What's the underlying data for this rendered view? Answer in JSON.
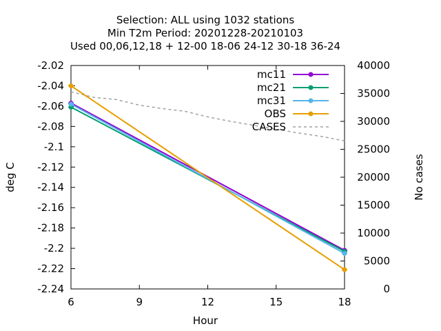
{
  "chart_data": {
    "type": "line",
    "title_lines": [
      "Selection: ALL using  1032 stations",
      "Min T2m   Period: 20201228-20210103",
      "Used  00,06,12,18 + 12-00 18-06 24-12 30-18 36-24"
    ],
    "xlabel": "Hour",
    "ylabel": "deg C",
    "y2label": "No cases",
    "x_ticks": [
      6,
      9,
      12,
      15,
      18
    ],
    "xlim": [
      6,
      18
    ],
    "ylim": [
      -2.24,
      -2.02
    ],
    "y_ticks": [
      -2.02,
      -2.04,
      -2.06,
      -2.08,
      -2.1,
      -2.12,
      -2.14,
      -2.16,
      -2.18,
      -2.2,
      -2.22,
      -2.24
    ],
    "y_tick_labels": [
      "-2.02",
      "-2.04",
      "-2.06",
      "-2.08",
      "-2.1",
      "-2.12",
      "-2.14",
      "-2.16",
      "-2.18",
      "-2.2",
      "-2.22",
      "-2.24"
    ],
    "y2lim": [
      0,
      40000
    ],
    "y2_ticks": [
      0,
      5000,
      10000,
      15000,
      20000,
      25000,
      30000,
      35000,
      40000
    ],
    "legend_position": "top-right",
    "grid": false,
    "series": [
      {
        "name": "mc11",
        "color": "#9400d3",
        "x": [
          6,
          18
        ],
        "y": [
          -2.057,
          -2.202
        ],
        "axis": "y"
      },
      {
        "name": "mc21",
        "color": "#009e73",
        "x": [
          6,
          18
        ],
        "y": [
          -2.061,
          -2.203
        ],
        "axis": "y"
      },
      {
        "name": "mc31",
        "color": "#56b4e9",
        "x": [
          6,
          18
        ],
        "y": [
          -2.058,
          -2.205
        ],
        "axis": "y"
      },
      {
        "name": "OBS",
        "color": "#e69f00",
        "x": [
          6,
          18
        ],
        "y": [
          -2.04,
          -2.221
        ],
        "axis": "y"
      }
    ],
    "cases": {
      "name": "CASES",
      "color": "#a0a0a0",
      "axis": "y2",
      "x": [
        6,
        7,
        8,
        9,
        10,
        11,
        12,
        13,
        14,
        15,
        16,
        17,
        18
      ],
      "y": [
        35300,
        34300,
        33900,
        32900,
        32300,
        31800,
        30800,
        30000,
        29300,
        28600,
        27900,
        27300,
        26500
      ]
    }
  }
}
